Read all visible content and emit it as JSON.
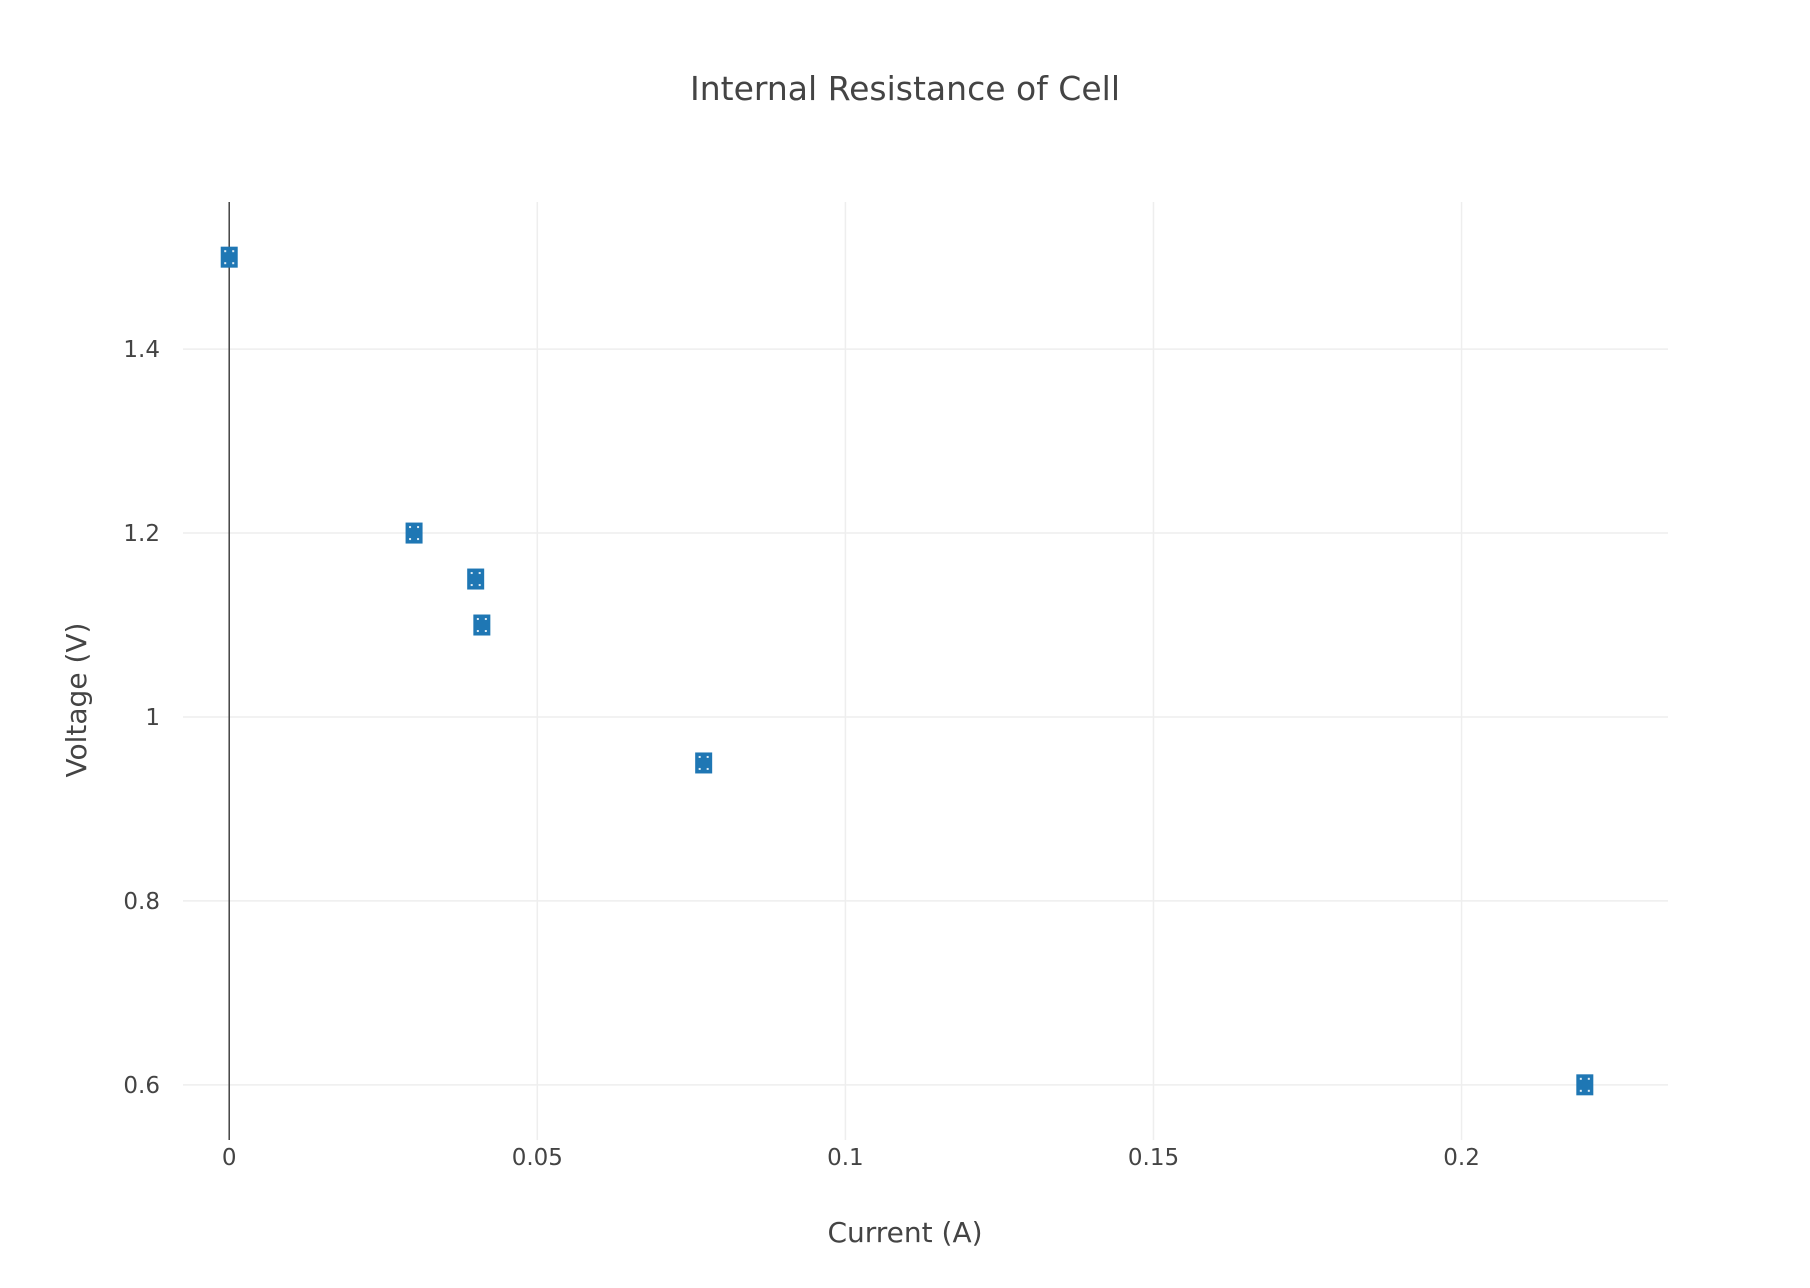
{
  "chart_data": {
    "type": "scatter",
    "title": "Internal Resistance of Cell",
    "xlabel": "Current (A)",
    "ylabel": "Voltage (V)",
    "xlim": [
      -0.0075,
      0.2335
    ],
    "ylim": [
      0.54,
      1.56
    ],
    "xticks": [
      0,
      0.05,
      0.1,
      0.15,
      0.2
    ],
    "xtick_labels": [
      "0",
      "0.05",
      "0.1",
      "0.15",
      "0.2"
    ],
    "yticks": [
      0.6,
      0.8,
      1,
      1.2,
      1.4
    ],
    "ytick_labels": [
      "0.6",
      "0.8",
      "1",
      "1.2",
      "1.4"
    ],
    "grid": true,
    "legend": false,
    "marker": "square",
    "marker_color": "#1f77b4",
    "grid_color": "#eeeeee",
    "zero_line_color": "#444444",
    "series": [
      {
        "x": [
          0,
          0.03,
          0.04,
          0.041,
          0.077,
          0.22
        ],
        "y": [
          1.5,
          1.2,
          1.15,
          1.1,
          0.95,
          0.6
        ]
      }
    ]
  }
}
